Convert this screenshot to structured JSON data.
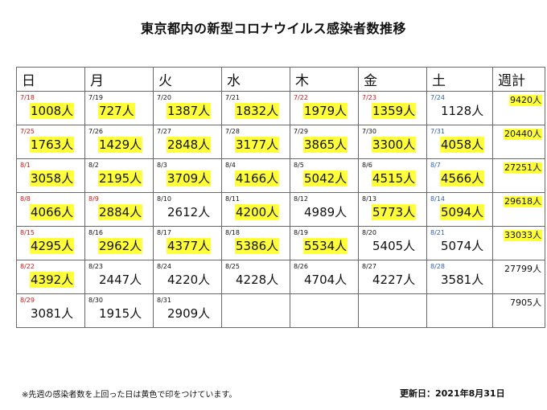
{
  "title": "東京都内の新型コロナウイルス感染者数推移",
  "headers": [
    "日",
    "月",
    "火",
    "水",
    "木",
    "金",
    "土",
    "週計"
  ],
  "weeks": [
    {
      "days": [
        {
          "date": "7/18",
          "count": "1008人",
          "dc": "red",
          "hl": true
        },
        {
          "date": "7/19",
          "count": "727人",
          "dc": "",
          "hl": true
        },
        {
          "date": "7/20",
          "count": "1387人",
          "dc": "",
          "hl": true
        },
        {
          "date": "7/21",
          "count": "1832人",
          "dc": "",
          "hl": true
        },
        {
          "date": "7/22",
          "count": "1979人",
          "dc": "red",
          "hl": true
        },
        {
          "date": "7/23",
          "count": "1359人",
          "dc": "red",
          "hl": true
        },
        {
          "date": "7/24",
          "count": "1128人",
          "dc": "blue",
          "hl": false
        }
      ],
      "total": "9420人",
      "total_hl": true
    },
    {
      "days": [
        {
          "date": "7/25",
          "count": "1763人",
          "dc": "red",
          "hl": true
        },
        {
          "date": "7/26",
          "count": "1429人",
          "dc": "",
          "hl": true
        },
        {
          "date": "7/27",
          "count": "2848人",
          "dc": "",
          "hl": true
        },
        {
          "date": "7/28",
          "count": "3177人",
          "dc": "",
          "hl": true
        },
        {
          "date": "7/29",
          "count": "3865人",
          "dc": "",
          "hl": true
        },
        {
          "date": "7/30",
          "count": "3300人",
          "dc": "",
          "hl": true
        },
        {
          "date": "7/31",
          "count": "4058人",
          "dc": "blue",
          "hl": true
        }
      ],
      "total": "20440人",
      "total_hl": true
    },
    {
      "days": [
        {
          "date": "8/1",
          "count": "3058人",
          "dc": "red",
          "hl": true
        },
        {
          "date": "8/2",
          "count": "2195人",
          "dc": "",
          "hl": true
        },
        {
          "date": "8/3",
          "count": "3709人",
          "dc": "",
          "hl": true
        },
        {
          "date": "8/4",
          "count": "4166人",
          "dc": "",
          "hl": true
        },
        {
          "date": "8/5",
          "count": "5042人",
          "dc": "",
          "hl": true
        },
        {
          "date": "8/6",
          "count": "4515人",
          "dc": "",
          "hl": true
        },
        {
          "date": "8/7",
          "count": "4566人",
          "dc": "blue",
          "hl": true
        }
      ],
      "total": "27251人",
      "total_hl": true
    },
    {
      "days": [
        {
          "date": "8/8",
          "count": "4066人",
          "dc": "red",
          "hl": true
        },
        {
          "date": "8/9",
          "count": "2884人",
          "dc": "red",
          "hl": true
        },
        {
          "date": "8/10",
          "count": "2612人",
          "dc": "",
          "hl": false
        },
        {
          "date": "8/11",
          "count": "4200人",
          "dc": "",
          "hl": true
        },
        {
          "date": "8/12",
          "count": "4989人",
          "dc": "",
          "hl": false
        },
        {
          "date": "8/13",
          "count": "5773人",
          "dc": "",
          "hl": true
        },
        {
          "date": "8/14",
          "count": "5094人",
          "dc": "blue",
          "hl": true
        }
      ],
      "total": "29618人",
      "total_hl": true
    },
    {
      "days": [
        {
          "date": "8/15",
          "count": "4295人",
          "dc": "red",
          "hl": true
        },
        {
          "date": "8/16",
          "count": "2962人",
          "dc": "",
          "hl": true
        },
        {
          "date": "8/17",
          "count": "4377人",
          "dc": "",
          "hl": true
        },
        {
          "date": "8/18",
          "count": "5386人",
          "dc": "",
          "hl": true
        },
        {
          "date": "8/19",
          "count": "5534人",
          "dc": "",
          "hl": true
        },
        {
          "date": "8/20",
          "count": "5405人",
          "dc": "",
          "hl": false
        },
        {
          "date": "8/21",
          "count": "5074人",
          "dc": "blue",
          "hl": false
        }
      ],
      "total": "33033人",
      "total_hl": true
    },
    {
      "days": [
        {
          "date": "8/22",
          "count": "4392人",
          "dc": "red",
          "hl": true
        },
        {
          "date": "8/23",
          "count": "2447人",
          "dc": "",
          "hl": false
        },
        {
          "date": "8/24",
          "count": "4220人",
          "dc": "",
          "hl": false
        },
        {
          "date": "8/25",
          "count": "4228人",
          "dc": "",
          "hl": false
        },
        {
          "date": "8/26",
          "count": "4704人",
          "dc": "",
          "hl": false
        },
        {
          "date": "8/27",
          "count": "4227人",
          "dc": "",
          "hl": false
        },
        {
          "date": "8/28",
          "count": "3581人",
          "dc": "blue",
          "hl": false
        }
      ],
      "total": "27799人",
      "total_hl": false
    },
    {
      "days": [
        {
          "date": "8/29",
          "count": "3081人",
          "dc": "red",
          "hl": false
        },
        {
          "date": "8/30",
          "count": "1915人",
          "dc": "",
          "hl": false
        },
        {
          "date": "8/31",
          "count": "2909人",
          "dc": "",
          "hl": false
        },
        null,
        null,
        null,
        null
      ],
      "total": "7905人",
      "total_hl": false
    }
  ],
  "footnote": "※先週の感染者数を上回った日は黄色で印をつけています。",
  "updated": "更新日：2021年8月31日",
  "colors": {
    "highlight": "#ffff3a",
    "sunday_header": "#f6c6cc",
    "saturday_header": "#dde8f7",
    "red_date": "#d01818",
    "blue_date": "#2f5fb0"
  }
}
